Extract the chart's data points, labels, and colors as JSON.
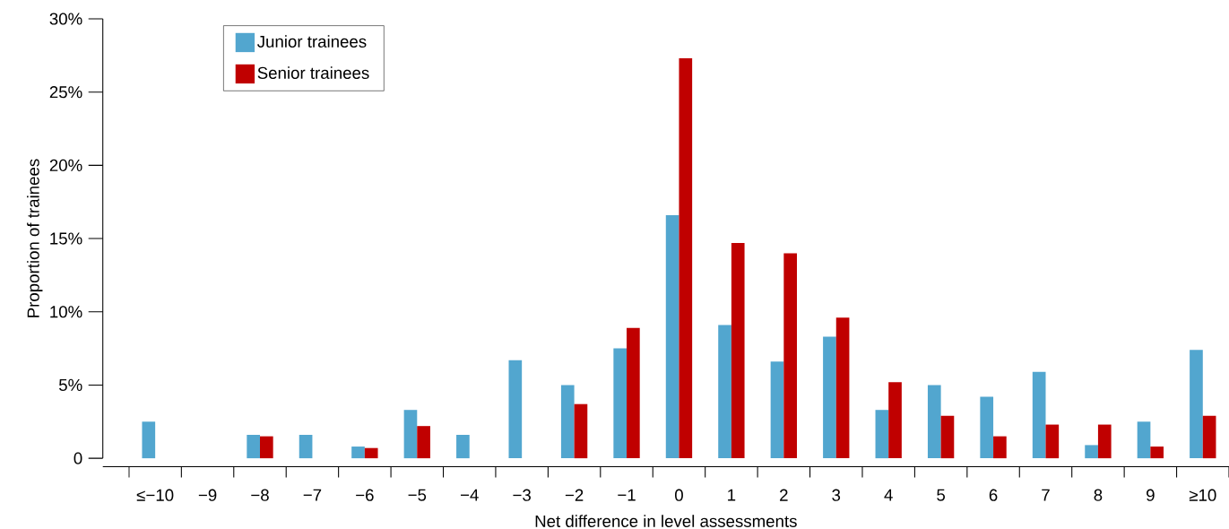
{
  "chart_data": {
    "type": "bar",
    "xlabel": "Net difference in level assessments",
    "ylabel": "Proportion of trainees",
    "categories": [
      "≤−10",
      "−9",
      "−8",
      "−7",
      "−6",
      "−5",
      "−4",
      "−3",
      "−2",
      "−1",
      "0",
      "1",
      "2",
      "3",
      "4",
      "5",
      "6",
      "7",
      "8",
      "9",
      "≥10"
    ],
    "series": [
      {
        "name": "Junior trainees",
        "color": "#52a6cf",
        "values": [
          2.5,
          0,
          1.6,
          1.6,
          0.8,
          3.3,
          1.6,
          6.7,
          5.0,
          7.5,
          16.6,
          9.1,
          6.6,
          8.3,
          3.3,
          5.0,
          4.2,
          5.9,
          0.9,
          2.5,
          7.4
        ]
      },
      {
        "name": "Senior trainees",
        "color": "#c00000",
        "values": [
          0,
          0,
          1.5,
          0,
          0.7,
          2.2,
          0,
          0,
          3.7,
          8.9,
          27.3,
          14.7,
          14.0,
          9.6,
          5.2,
          2.9,
          1.5,
          2.3,
          2.3,
          0.8,
          2.9
        ]
      }
    ],
    "ylim": [
      0,
      30
    ],
    "yticks": [
      0,
      {
        "value": 5,
        "label": "5%"
      },
      {
        "value": 10,
        "label": "10%"
      },
      {
        "value": 15,
        "label": "15%"
      },
      {
        "value": 20,
        "label": "20%"
      },
      {
        "value": 25,
        "label": "25%"
      },
      {
        "value": 30,
        "label": "30%"
      }
    ],
    "legend": "top left"
  }
}
